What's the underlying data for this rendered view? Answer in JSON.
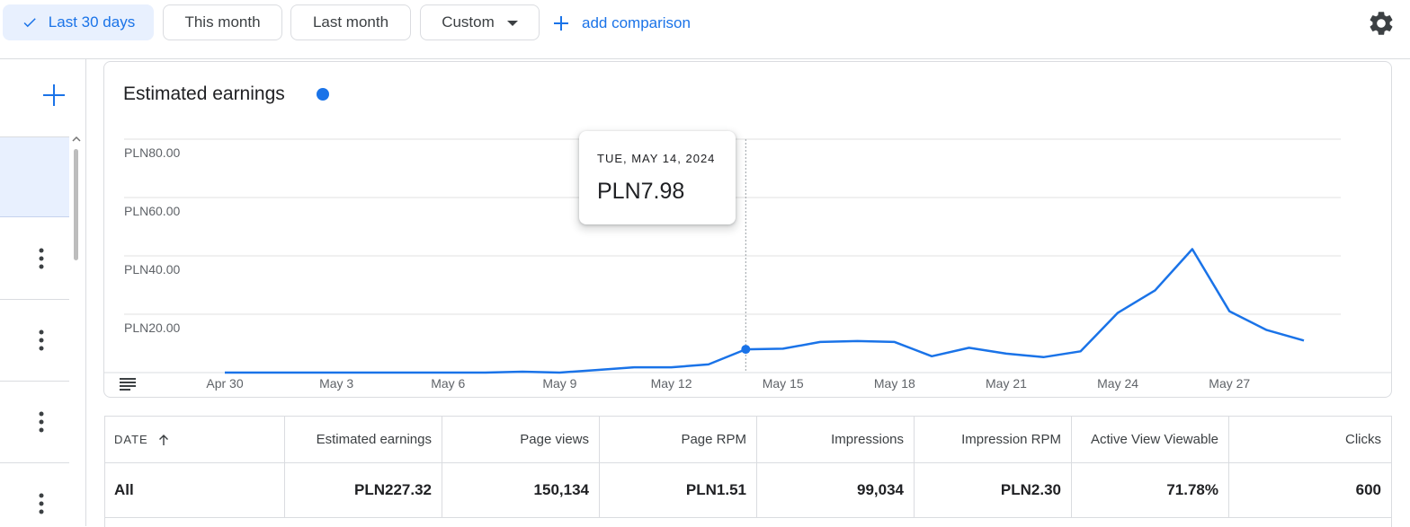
{
  "filters": {
    "active_label": "Last 30 days",
    "this_month_label": "This month",
    "last_month_label": "Last month",
    "custom_label": "Custom",
    "add_comparison_label": "add comparison"
  },
  "card": {
    "title": "Estimated earnings",
    "series_color": "#1a73e8"
  },
  "tooltip": {
    "date": "TUE, MAY 14, 2024",
    "value": "PLN7.98"
  },
  "chart_data": {
    "type": "line",
    "title": "Estimated earnings",
    "y_ticks": [
      "PLN80.00",
      "PLN60.00",
      "PLN40.00",
      "PLN20.00"
    ],
    "x_ticks": [
      "Apr 30",
      "May 3",
      "May 6",
      "May 9",
      "May 12",
      "May 15",
      "May 18",
      "May 21",
      "May 24",
      "May 27"
    ],
    "ylim": [
      0,
      80
    ],
    "grid": true,
    "x": [
      "Apr 30",
      "May 1",
      "May 2",
      "May 3",
      "May 4",
      "May 5",
      "May 6",
      "May 7",
      "May 8",
      "May 9",
      "May 10",
      "May 11",
      "May 12",
      "May 13",
      "May 14",
      "May 15",
      "May 16",
      "May 17",
      "May 18",
      "May 19",
      "May 20",
      "May 21",
      "May 22",
      "May 23",
      "May 24",
      "May 25",
      "May 26",
      "May 27",
      "May 28",
      "May 29"
    ],
    "series": [
      {
        "values": [
          0,
          0,
          0,
          0,
          0,
          0,
          0,
          0,
          0.3,
          0,
          0.9,
          1.8,
          1.8,
          2.8,
          7.98,
          8.2,
          10.5,
          10.8,
          10.5,
          5.6,
          8.5,
          6.5,
          5.3,
          7.3,
          20.5,
          28.2,
          42.3,
          21.0,
          14.6,
          11.0
        ]
      }
    ],
    "highlight_index": 14
  },
  "table": {
    "headers": [
      "DATE",
      "Estimated earnings",
      "Page views",
      "Page RPM",
      "Impressions",
      "Impression RPM",
      "Active View Viewable",
      "Clicks"
    ],
    "rows": [
      [
        "All",
        "PLN227.32",
        "150,134",
        "PLN1.51",
        "99,034",
        "PLN2.30",
        "71.78%",
        "600"
      ]
    ]
  }
}
